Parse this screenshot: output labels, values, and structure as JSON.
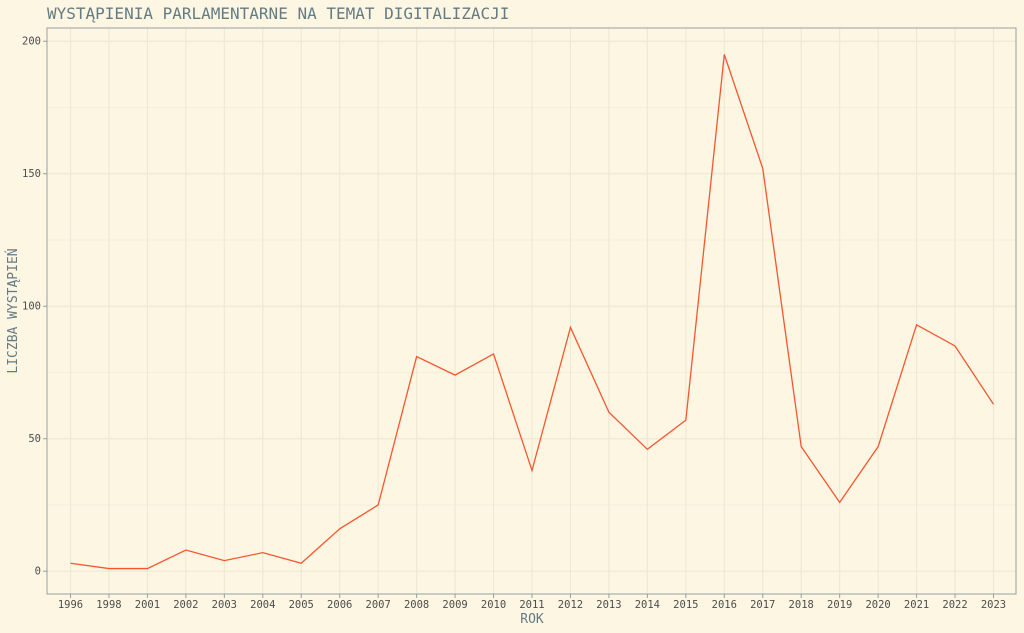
{
  "chart_data": {
    "type": "line",
    "title": "WYSTĄPIENIA PARLAMENTARNE NA TEMAT DIGITALIZACJI",
    "xlabel": "ROK",
    "ylabel": "LICZBA WYSTĄPIEŃ",
    "ylim": [
      -8.6,
      205
    ],
    "yticks": [
      0,
      50,
      100,
      150,
      200
    ],
    "grid": true,
    "categories": [
      "1996",
      "1998",
      "2001",
      "2002",
      "2003",
      "2004",
      "2005",
      "2006",
      "2007",
      "2008",
      "2009",
      "2010",
      "2011",
      "2012",
      "2013",
      "2014",
      "2015",
      "2016",
      "2017",
      "2018",
      "2019",
      "2020",
      "2021",
      "2022",
      "2023"
    ],
    "series": [
      {
        "name": "",
        "color": "#f4572f",
        "values": [
          3,
          1,
          1,
          8,
          4,
          7,
          3,
          16,
          25,
          81,
          74,
          82,
          38,
          92,
          60,
          46,
          57,
          195,
          152,
          47,
          26,
          47,
          93,
          85,
          63
        ]
      }
    ]
  },
  "colors": {
    "background": "#fdf6e3",
    "grid": "#f0e8d4",
    "axis": "#93a1a1",
    "line": "#f4572f"
  }
}
